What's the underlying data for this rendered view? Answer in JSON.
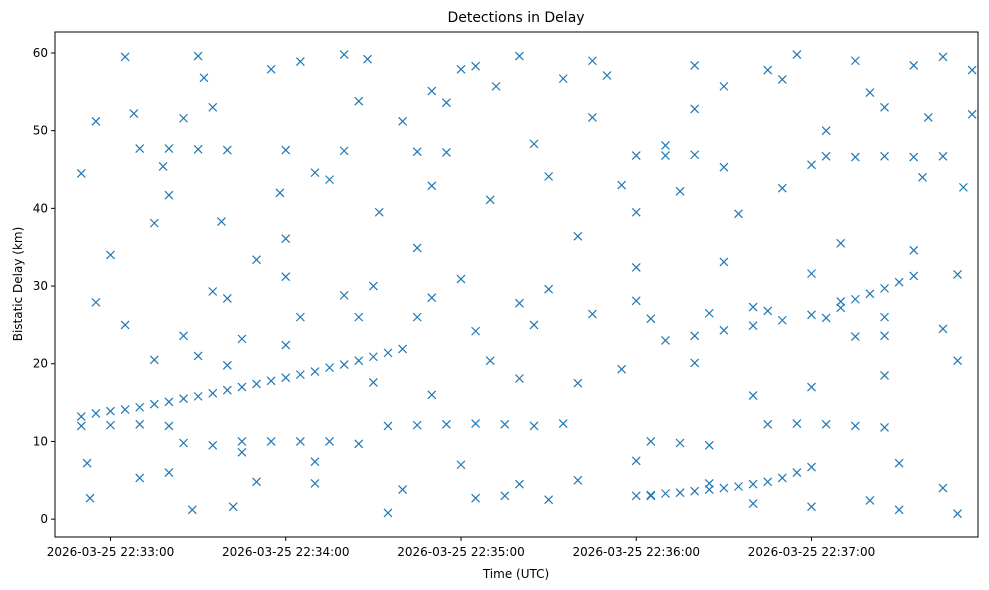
{
  "chart_data": {
    "type": "scatter",
    "title": "Detections in Delay",
    "xlabel": "Time (UTC)",
    "ylabel": "Bistatic Delay (km)",
    "x_is_time": true,
    "xlim": [
      "2026-03-25 22:32:41",
      "2026-03-25 22:37:57"
    ],
    "ylim": [
      -2.3,
      62.7
    ],
    "x_ticks": [
      {
        "t": "2026-03-25 22:33:00",
        "label": "2026-03-25 22:33:00"
      },
      {
        "t": "2026-03-25 22:34:00",
        "label": "2026-03-25 22:34:00"
      },
      {
        "t": "2026-03-25 22:35:00",
        "label": "2026-03-25 22:35:00"
      },
      {
        "t": "2026-03-25 22:36:00",
        "label": "2026-03-25 22:36:00"
      },
      {
        "t": "2026-03-25 22:37:00",
        "label": "2026-03-25 22:37:00"
      }
    ],
    "y_ticks": [
      0,
      10,
      20,
      30,
      40,
      50,
      60
    ],
    "marker": "x",
    "color": "#1f77b4",
    "grid": false,
    "legend": "none",
    "series": [
      {
        "name": "",
        "points": [
          [
            "2026-03-25 22:32:50",
            13.2
          ],
          [
            "2026-03-25 22:32:55",
            13.6
          ],
          [
            "2026-03-25 22:33:00",
            13.9
          ],
          [
            "2026-03-25 22:33:05",
            14.1
          ],
          [
            "2026-03-25 22:33:10",
            14.4
          ],
          [
            "2026-03-25 22:33:15",
            14.8
          ],
          [
            "2026-03-25 22:33:20",
            15.1
          ],
          [
            "2026-03-25 22:33:25",
            15.5
          ],
          [
            "2026-03-25 22:33:30",
            15.8
          ],
          [
            "2026-03-25 22:33:35",
            16.2
          ],
          [
            "2026-03-25 22:33:40",
            16.6
          ],
          [
            "2026-03-25 22:33:45",
            17.0
          ],
          [
            "2026-03-25 22:33:50",
            17.4
          ],
          [
            "2026-03-25 22:33:55",
            17.8
          ],
          [
            "2026-03-25 22:34:00",
            18.2
          ],
          [
            "2026-03-25 22:34:05",
            18.6
          ],
          [
            "2026-03-25 22:34:10",
            19.0
          ],
          [
            "2026-03-25 22:34:15",
            19.5
          ],
          [
            "2026-03-25 22:34:20",
            19.9
          ],
          [
            "2026-03-25 22:34:25",
            20.4
          ],
          [
            "2026-03-25 22:34:30",
            20.9
          ],
          [
            "2026-03-25 22:34:35",
            21.4
          ],
          [
            "2026-03-25 22:34:40",
            21.9
          ],
          [
            "2026-03-25 22:36:00",
            3.0
          ],
          [
            "2026-03-25 22:36:05",
            3.1
          ],
          [
            "2026-03-25 22:36:10",
            3.3
          ],
          [
            "2026-03-25 22:36:15",
            3.4
          ],
          [
            "2026-03-25 22:36:20",
            3.6
          ],
          [
            "2026-03-25 22:36:25",
            3.8
          ],
          [
            "2026-03-25 22:36:30",
            4.0
          ],
          [
            "2026-03-25 22:36:35",
            4.2
          ],
          [
            "2026-03-25 22:36:40",
            4.5
          ],
          [
            "2026-03-25 22:36:45",
            4.8
          ],
          [
            "2026-03-25 22:36:50",
            5.3
          ],
          [
            "2026-03-25 22:36:55",
            6.0
          ],
          [
            "2026-03-25 22:36:10",
            23.0
          ],
          [
            "2026-03-25 22:36:20",
            23.6
          ],
          [
            "2026-03-25 22:36:30",
            24.3
          ],
          [
            "2026-03-25 22:36:40",
            24.9
          ],
          [
            "2026-03-25 22:36:50",
            25.6
          ],
          [
            "2026-03-25 22:37:00",
            26.3
          ],
          [
            "2026-03-25 22:37:10",
            27.2
          ],
          [
            "2026-03-25 22:37:15",
            28.3
          ],
          [
            "2026-03-25 22:37:20",
            29.0
          ],
          [
            "2026-03-25 22:37:25",
            29.7
          ],
          [
            "2026-03-25 22:37:30",
            30.5
          ],
          [
            "2026-03-25 22:37:35",
            31.3
          ],
          [
            "2026-03-25 22:32:50",
            12.0
          ],
          [
            "2026-03-25 22:33:00",
            12.1
          ],
          [
            "2026-03-25 22:33:10",
            12.2
          ],
          [
            "2026-03-25 22:33:20",
            12.0
          ],
          [
            "2026-03-25 22:33:25",
            9.8
          ],
          [
            "2026-03-25 22:33:35",
            9.5
          ],
          [
            "2026-03-25 22:33:45",
            10.0
          ],
          [
            "2026-03-25 22:33:55",
            10.0
          ],
          [
            "2026-03-25 22:34:05",
            10.0
          ],
          [
            "2026-03-25 22:34:15",
            10.0
          ],
          [
            "2026-03-25 22:34:25",
            9.7
          ],
          [
            "2026-03-25 22:34:35",
            12.0
          ],
          [
            "2026-03-25 22:34:45",
            12.1
          ],
          [
            "2026-03-25 22:34:55",
            12.2
          ],
          [
            "2026-03-25 22:35:05",
            12.3
          ],
          [
            "2026-03-25 22:35:15",
            12.2
          ],
          [
            "2026-03-25 22:35:25",
            12.0
          ],
          [
            "2026-03-25 22:35:35",
            12.3
          ],
          [
            "2026-03-25 22:36:05",
            10.0
          ],
          [
            "2026-03-25 22:36:15",
            9.8
          ],
          [
            "2026-03-25 22:36:25",
            9.5
          ],
          [
            "2026-03-25 22:36:45",
            12.2
          ],
          [
            "2026-03-25 22:36:55",
            12.3
          ],
          [
            "2026-03-25 22:37:05",
            12.2
          ],
          [
            "2026-03-25 22:37:15",
            12.0
          ],
          [
            "2026-03-25 22:37:25",
            11.8
          ],
          [
            "2026-03-25 22:33:05",
            25.0
          ],
          [
            "2026-03-25 22:33:25",
            23.6
          ],
          [
            "2026-03-25 22:33:45",
            23.2
          ],
          [
            "2026-03-25 22:34:05",
            26.0
          ],
          [
            "2026-03-25 22:34:25",
            26.0
          ],
          [
            "2026-03-25 22:34:45",
            26.0
          ],
          [
            "2026-03-25 22:35:05",
            24.2
          ],
          [
            "2026-03-25 22:35:25",
            25.0
          ],
          [
            "2026-03-25 22:35:45",
            26.4
          ],
          [
            "2026-03-25 22:36:05",
            25.8
          ],
          [
            "2026-03-25 22:36:25",
            26.5
          ],
          [
            "2026-03-25 22:36:45",
            26.8
          ],
          [
            "2026-03-25 22:37:05",
            25.9
          ],
          [
            "2026-03-25 22:37:25",
            26.0
          ],
          [
            "2026-03-25 22:37:45",
            24.5
          ],
          [
            "2026-03-25 22:32:55",
            27.9
          ],
          [
            "2026-03-25 22:33:40",
            28.4
          ],
          [
            "2026-03-25 22:34:20",
            28.8
          ],
          [
            "2026-03-25 22:34:50",
            28.5
          ],
          [
            "2026-03-25 22:35:20",
            27.8
          ],
          [
            "2026-03-25 22:36:00",
            28.1
          ],
          [
            "2026-03-25 22:36:40",
            27.3
          ],
          [
            "2026-03-25 22:37:10",
            28.0
          ],
          [
            "2026-03-25 22:33:10",
            47.7
          ],
          [
            "2026-03-25 22:33:20",
            47.7
          ],
          [
            "2026-03-25 22:33:30",
            47.6
          ],
          [
            "2026-03-25 22:33:40",
            47.5
          ],
          [
            "2026-03-25 22:34:00",
            47.5
          ],
          [
            "2026-03-25 22:34:20",
            47.4
          ],
          [
            "2026-03-25 22:34:45",
            47.3
          ],
          [
            "2026-03-25 22:34:55",
            47.2
          ],
          [
            "2026-03-25 22:36:00",
            46.8
          ],
          [
            "2026-03-25 22:36:10",
            46.8
          ],
          [
            "2026-03-25 22:36:20",
            46.9
          ],
          [
            "2026-03-25 22:37:05",
            46.7
          ],
          [
            "2026-03-25 22:37:15",
            46.6
          ],
          [
            "2026-03-25 22:37:25",
            46.7
          ],
          [
            "2026-03-25 22:37:35",
            46.6
          ],
          [
            "2026-03-25 22:37:45",
            46.7
          ],
          [
            "2026-03-25 22:37:15",
            23.5
          ],
          [
            "2026-03-25 22:37:25",
            23.6
          ],
          [
            "2026-03-25 22:37:35",
            34.6
          ],
          [
            "2026-03-25 22:32:50",
            44.5
          ],
          [
            "2026-03-25 22:32:52",
            7.2
          ],
          [
            "2026-03-25 22:32:53",
            2.7
          ],
          [
            "2026-03-25 22:32:55",
            51.2
          ],
          [
            "2026-03-25 22:33:00",
            34.0
          ],
          [
            "2026-03-25 22:33:05",
            59.5
          ],
          [
            "2026-03-25 22:33:08",
            52.2
          ],
          [
            "2026-03-25 22:33:10",
            5.3
          ],
          [
            "2026-03-25 22:33:15",
            38.1
          ],
          [
            "2026-03-25 22:33:18",
            45.4
          ],
          [
            "2026-03-25 22:33:20",
            41.7
          ],
          [
            "2026-03-25 22:33:25",
            51.6
          ],
          [
            "2026-03-25 22:33:28",
            1.2
          ],
          [
            "2026-03-25 22:33:30",
            59.6
          ],
          [
            "2026-03-25 22:33:32",
            56.8
          ],
          [
            "2026-03-25 22:33:35",
            53.0
          ],
          [
            "2026-03-25 22:33:38",
            38.3
          ],
          [
            "2026-03-25 22:33:42",
            1.6
          ],
          [
            "2026-03-25 22:33:45",
            8.6
          ],
          [
            "2026-03-25 22:33:50",
            33.4
          ],
          [
            "2026-03-25 22:33:55",
            57.9
          ],
          [
            "2026-03-25 22:33:58",
            42.0
          ],
          [
            "2026-03-25 22:34:00",
            36.1
          ],
          [
            "2026-03-25 22:34:05",
            58.9
          ],
          [
            "2026-03-25 22:34:10",
            4.6
          ],
          [
            "2026-03-25 22:34:15",
            43.7
          ],
          [
            "2026-03-25 22:34:20",
            59.8
          ],
          [
            "2026-03-25 22:34:25",
            53.8
          ],
          [
            "2026-03-25 22:34:28",
            59.2
          ],
          [
            "2026-03-25 22:34:32",
            39.5
          ],
          [
            "2026-03-25 22:34:35",
            0.8
          ],
          [
            "2026-03-25 22:34:40",
            51.2
          ],
          [
            "2026-03-25 22:34:45",
            34.9
          ],
          [
            "2026-03-25 22:34:50",
            55.1
          ],
          [
            "2026-03-25 22:34:55",
            53.6
          ],
          [
            "2026-03-25 22:35:00",
            57.9
          ],
          [
            "2026-03-25 22:35:05",
            2.7
          ],
          [
            "2026-03-25 22:35:10",
            41.1
          ],
          [
            "2026-03-25 22:35:15",
            3.0
          ],
          [
            "2026-03-25 22:35:20",
            59.6
          ],
          [
            "2026-03-25 22:35:25",
            48.3
          ],
          [
            "2026-03-25 22:35:30",
            2.5
          ],
          [
            "2026-03-25 22:35:35",
            56.7
          ],
          [
            "2026-03-25 22:35:40",
            36.4
          ],
          [
            "2026-03-25 22:35:45",
            51.7
          ],
          [
            "2026-03-25 22:35:50",
            57.1
          ],
          [
            "2026-03-25 22:35:55",
            43.0
          ],
          [
            "2026-03-25 22:36:00",
            39.5
          ],
          [
            "2026-03-25 22:36:05",
            3.0
          ],
          [
            "2026-03-25 22:36:10",
            48.1
          ],
          [
            "2026-03-25 22:36:15",
            42.2
          ],
          [
            "2026-03-25 22:36:20",
            58.4
          ],
          [
            "2026-03-25 22:36:25",
            4.6
          ],
          [
            "2026-03-25 22:36:30",
            55.7
          ],
          [
            "2026-03-25 22:36:35",
            39.3
          ],
          [
            "2026-03-25 22:36:40",
            2.0
          ],
          [
            "2026-03-25 22:36:45",
            57.8
          ],
          [
            "2026-03-25 22:36:50",
            42.6
          ],
          [
            "2026-03-25 22:36:55",
            59.8
          ],
          [
            "2026-03-25 22:37:00",
            1.6
          ],
          [
            "2026-03-25 22:37:05",
            50.0
          ],
          [
            "2026-03-25 22:37:10",
            35.5
          ],
          [
            "2026-03-25 22:37:15",
            59.0
          ],
          [
            "2026-03-25 22:37:20",
            2.4
          ],
          [
            "2026-03-25 22:37:25",
            53.0
          ],
          [
            "2026-03-25 22:37:30",
            1.2
          ],
          [
            "2026-03-25 22:37:35",
            58.4
          ],
          [
            "2026-03-25 22:37:40",
            51.7
          ],
          [
            "2026-03-25 22:37:45",
            59.5
          ],
          [
            "2026-03-25 22:37:50",
            0.7
          ],
          [
            "2026-03-25 22:37:52",
            42.7
          ],
          [
            "2026-03-25 22:37:55",
            57.8
          ],
          [
            "2026-03-25 22:35:05",
            58.3
          ],
          [
            "2026-03-25 22:35:12",
            55.7
          ],
          [
            "2026-03-25 22:35:45",
            59.0
          ],
          [
            "2026-03-25 22:36:20",
            52.8
          ],
          [
            "2026-03-25 22:36:50",
            56.6
          ],
          [
            "2026-03-25 22:37:20",
            54.9
          ],
          [
            "2026-03-25 22:37:38",
            44.0
          ],
          [
            "2026-03-25 22:37:55",
            52.1
          ],
          [
            "2026-03-25 22:33:15",
            20.5
          ],
          [
            "2026-03-25 22:33:30",
            21.0
          ],
          [
            "2026-03-25 22:33:40",
            19.8
          ],
          [
            "2026-03-25 22:34:00",
            22.4
          ],
          [
            "2026-03-25 22:34:30",
            17.6
          ],
          [
            "2026-03-25 22:34:50",
            16.0
          ],
          [
            "2026-03-25 22:35:10",
            20.4
          ],
          [
            "2026-03-25 22:35:20",
            18.1
          ],
          [
            "2026-03-25 22:35:40",
            17.5
          ],
          [
            "2026-03-25 22:35:55",
            19.3
          ],
          [
            "2026-03-25 22:36:20",
            20.1
          ],
          [
            "2026-03-25 22:36:40",
            15.9
          ],
          [
            "2026-03-25 22:37:00",
            17.0
          ],
          [
            "2026-03-25 22:37:25",
            18.5
          ],
          [
            "2026-03-25 22:37:50",
            20.4
          ],
          [
            "2026-03-25 22:33:20",
            6.0
          ],
          [
            "2026-03-25 22:33:50",
            4.8
          ],
          [
            "2026-03-25 22:34:10",
            7.4
          ],
          [
            "2026-03-25 22:34:40",
            3.8
          ],
          [
            "2026-03-25 22:35:00",
            7.0
          ],
          [
            "2026-03-25 22:35:20",
            4.5
          ],
          [
            "2026-03-25 22:35:40",
            5.0
          ],
          [
            "2026-03-25 22:36:00",
            7.5
          ],
          [
            "2026-03-25 22:37:00",
            6.7
          ],
          [
            "2026-03-25 22:37:30",
            7.2
          ],
          [
            "2026-03-25 22:37:45",
            4.0
          ],
          [
            "2026-03-25 22:33:35",
            29.3
          ],
          [
            "2026-03-25 22:34:00",
            31.2
          ],
          [
            "2026-03-25 22:34:30",
            30.0
          ],
          [
            "2026-03-25 22:35:00",
            30.9
          ],
          [
            "2026-03-25 22:35:30",
            29.6
          ],
          [
            "2026-03-25 22:36:00",
            32.4
          ],
          [
            "2026-03-25 22:36:30",
            33.1
          ],
          [
            "2026-03-25 22:37:00",
            31.6
          ],
          [
            "2026-03-25 22:37:50",
            31.5
          ],
          [
            "2026-03-25 22:34:10",
            44.6
          ],
          [
            "2026-03-25 22:34:50",
            42.9
          ],
          [
            "2026-03-25 22:35:30",
            44.1
          ],
          [
            "2026-03-25 22:36:30",
            45.3
          ],
          [
            "2026-03-25 22:37:00",
            45.6
          ]
        ]
      }
    ]
  }
}
